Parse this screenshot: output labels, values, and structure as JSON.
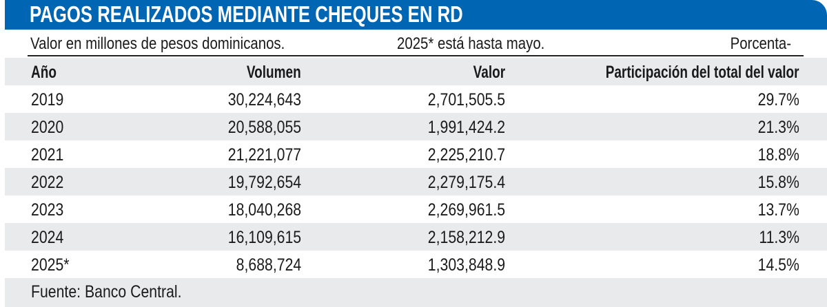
{
  "chart_data": {
    "type": "table",
    "title": "PAGOS REALIZADOS MEDIANTE CHEQUES EN RD",
    "notes": {
      "units": "Valor en millones de pesos dominicanos.",
      "partial_year": "2025* está hasta mayo.",
      "percent_header_prefix": "Porcenta-"
    },
    "columns": [
      "Año",
      "Volumen",
      "Valor",
      "Participación del total del valor"
    ],
    "rows": [
      [
        "2019",
        "30,224,643",
        "2,701,505.5",
        "29.7%"
      ],
      [
        "2020",
        "20,588,055",
        "1,991,424.2",
        "21.3%"
      ],
      [
        "2021",
        "21,221,077",
        "2,225,210.7",
        "18.8%"
      ],
      [
        "2022",
        "19,792,654",
        "2,279,175.4",
        "15.8%"
      ],
      [
        "2023",
        "18,040,268",
        "2,269,961.5",
        "13.7%"
      ],
      [
        "2024",
        "16,109,615",
        "2,158,212.9",
        "11.3%"
      ],
      [
        "2025*",
        "8,688,724",
        "1,303,848.9",
        "14.5%"
      ]
    ],
    "source": "Fuente: Banco Central."
  },
  "colors": {
    "header_band": "#0066b3",
    "stripe": "#e9eaec"
  }
}
